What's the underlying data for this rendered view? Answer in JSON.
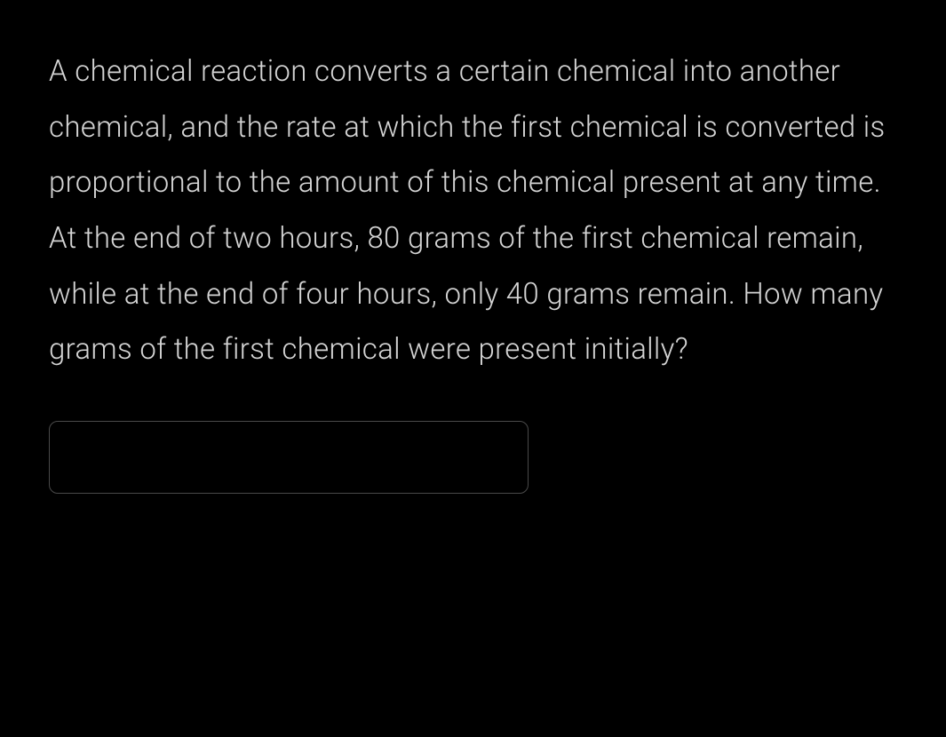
{
  "question": {
    "text": "A chemical reaction converts a certain chemical into another chemical, and the rate at which the first chemical is converted is proportional to the amount of this chemical present at any time. At the end of two hours, 80 grams of the first chemical remain, while at the end of four hours, only 40 grams remain. How many grams of the first chemical were present initially?"
  },
  "answer": {
    "value": "",
    "placeholder": ""
  },
  "colors": {
    "background": "#000000",
    "text": "#d4d4d4",
    "input_border": "#4a4a4a"
  },
  "typography": {
    "question_fontsize": 33,
    "question_lineheight": 1.9,
    "question_fontweight": 300
  }
}
